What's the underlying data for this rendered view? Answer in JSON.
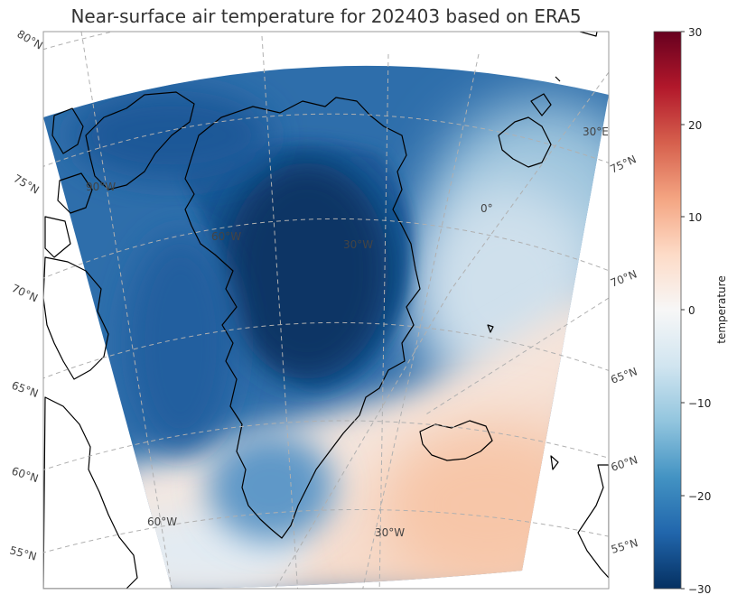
{
  "title": "Near-surface air temperature for 202403 based on ERA5",
  "colorbar": {
    "label": "temperature",
    "ticks": [
      "30",
      "20",
      "10",
      "0",
      "−10",
      "−20",
      "−30"
    ],
    "colors": [
      "#67001f",
      "#b2182b",
      "#d6604d",
      "#f4a582",
      "#fddbc7",
      "#f7f7f7",
      "#d1e5f0",
      "#92c5de",
      "#4393c3",
      "#2166ac",
      "#053061"
    ]
  },
  "map": {
    "lat_labels": [
      "80°N",
      "75°N",
      "70°N",
      "65°N",
      "60°N",
      "55°N",
      "75°N",
      "70°N",
      "65°N",
      "60°N",
      "55°N"
    ],
    "lon_labels": [
      "30°E",
      "0°",
      "30°W",
      "60°W",
      "90°W",
      "60°W",
      "30°W"
    ],
    "colors": {
      "land_outline": "#000000",
      "grid": "#b0b0b0",
      "frame": "#999999"
    }
  }
}
